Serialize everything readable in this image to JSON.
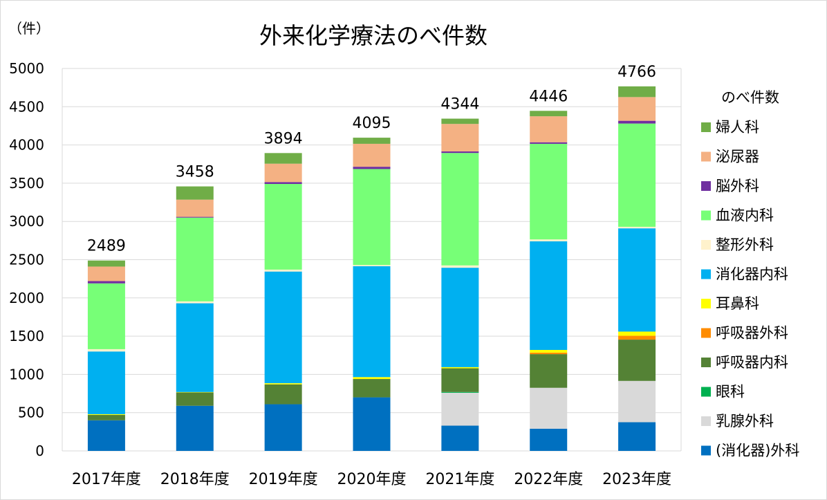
{
  "chart_data": {
    "type": "bar",
    "stacked": true,
    "title": "外来化学療法のべ件数",
    "ylabel": "（件）",
    "legend_title": "のべ件数",
    "legend_position": "right",
    "grid": true,
    "ylim": [
      0,
      5000
    ],
    "yticks": [
      0,
      500,
      1000,
      1500,
      2000,
      2500,
      3000,
      3500,
      4000,
      4500,
      5000
    ],
    "categories": [
      "2017年度",
      "2018年度",
      "2019年度",
      "2020年度",
      "2021年度",
      "2022年度",
      "2023年度"
    ],
    "totals": [
      2489,
      3458,
      3894,
      4095,
      4344,
      4446,
      4766
    ],
    "series": [
      {
        "name": "(消化器)外科",
        "color": "#0070C0",
        "values": [
          400,
          590,
          610,
          700,
          330,
          290,
          375
        ]
      },
      {
        "name": "乳腺外科",
        "color": "#D9D9D9",
        "values": [
          0,
          0,
          0,
          0,
          430,
          535,
          540
        ]
      },
      {
        "name": "眼科",
        "color": "#00B050",
        "values": [
          0,
          0,
          0,
          0,
          10,
          0,
          0
        ]
      },
      {
        "name": "呼吸器内科",
        "color": "#548235",
        "values": [
          70,
          175,
          260,
          240,
          310,
          440,
          540
        ]
      },
      {
        "name": "呼吸器外科",
        "color": "#FF8C00",
        "values": [
          0,
          0,
          0,
          0,
          0,
          20,
          50
        ]
      },
      {
        "name": "耳鼻科",
        "color": "#FFFF00",
        "values": [
          10,
          5,
          15,
          25,
          15,
          35,
          55
        ]
      },
      {
        "name": "消化器内科",
        "color": "#00B0F0",
        "values": [
          820,
          1160,
          1460,
          1450,
          1300,
          1420,
          1350
        ]
      },
      {
        "name": "整形外科",
        "color": "#FFF2CC",
        "values": [
          30,
          25,
          25,
          15,
          30,
          25,
          20
        ]
      },
      {
        "name": "血液内科",
        "color": "#77FF77",
        "values": [
          860,
          1095,
          1120,
          1255,
          1470,
          1250,
          1350
        ]
      },
      {
        "name": "脳外科",
        "color": "#7030A0",
        "values": [
          30,
          10,
          25,
          30,
          20,
          20,
          36
        ]
      },
      {
        "name": "泌尿器",
        "color": "#F4B183",
        "values": [
          190,
          225,
          240,
          300,
          360,
          340,
          310
        ]
      },
      {
        "name": "婦人科",
        "color": "#70AD47",
        "values": [
          79,
          173,
          139,
          80,
          69,
          71,
          140
        ]
      }
    ]
  }
}
